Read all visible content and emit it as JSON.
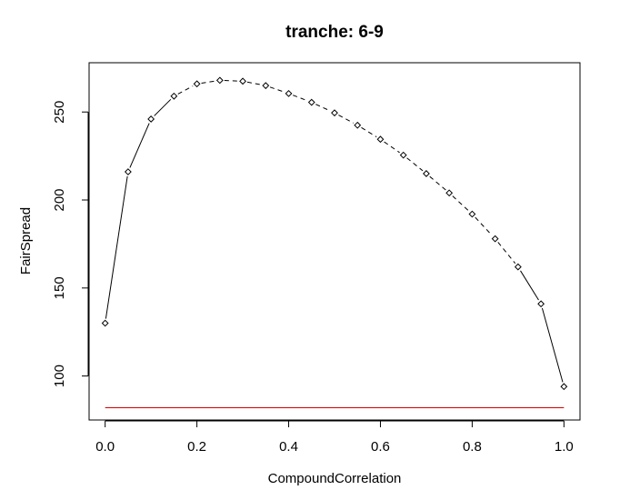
{
  "chart_data": {
    "type": "line",
    "title": "tranche:  6-9",
    "xlabel": "CompoundCorrelation",
    "ylabel": "FairSpread",
    "xlim": [
      -0.035,
      1.035
    ],
    "ylim": [
      75,
      278
    ],
    "x_ticks": [
      "0.0",
      "0.2",
      "0.4",
      "0.6",
      "0.8",
      "1.0"
    ],
    "y_ticks": [
      "100",
      "150",
      "200",
      "250"
    ],
    "series": [
      {
        "x": [
          0.0,
          0.05,
          0.1,
          0.15,
          0.2,
          0.25,
          0.3,
          0.35,
          0.4,
          0.45,
          0.5,
          0.55,
          0.6,
          0.65,
          0.7,
          0.75,
          0.8,
          0.85,
          0.9,
          0.95,
          1.0
        ],
        "values": [
          130,
          216,
          246,
          259,
          266,
          268,
          267.5,
          265,
          260.5,
          255.5,
          249.5,
          242.5,
          234.5,
          225.5,
          215,
          204,
          192,
          178,
          162,
          141,
          94
        ],
        "color": "#000000",
        "marker": "diamond",
        "line": "solid-then-dashed"
      }
    ],
    "reference_line": {
      "y": 82,
      "x_range": [
        0.0,
        1.0
      ],
      "color": "#d40000"
    },
    "grid": false,
    "legend": "none"
  }
}
